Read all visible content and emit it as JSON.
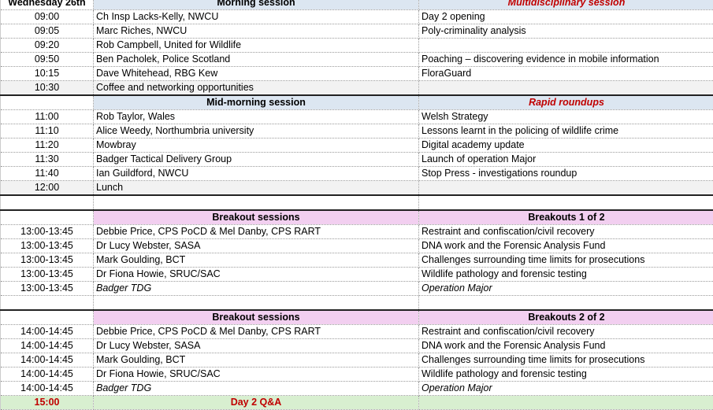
{
  "colors": {
    "header_blue": "#dce6f1",
    "header_pink": "#f2cff0",
    "qa_green": "#d8efd0",
    "accent_red": "#c00000"
  },
  "rows": [
    {
      "type": "head",
      "style": "blue",
      "c0": "Wednesday 26th",
      "c1": "Morning session",
      "c2": "Multidisciplinary session",
      "c2red": true
    },
    {
      "c0": "09:00",
      "c1": "Ch Insp Lacks-Kelly, NWCU",
      "c2": "Day 2 opening"
    },
    {
      "c0": "09:05",
      "c1": "Marc Riches, NWCU",
      "c2": "Poly-criminality analysis"
    },
    {
      "c0": "09:20",
      "c1": "Rob Campbell, United for Wildlife",
      "c2": ""
    },
    {
      "c0": "09:50",
      "c1": "Ben Pacholek, Police Scotland",
      "c2": "Poaching – discovering evidence in mobile information"
    },
    {
      "c0": "10:15",
      "c1": "Dave Whitehead, RBG Kew",
      "c2": "FloraGuard"
    },
    {
      "type": "gray",
      "c0": "10:30",
      "c1": "Coffee and networking opportunities",
      "c2": ""
    },
    {
      "type": "head",
      "style": "blue",
      "thick": true,
      "c0": "",
      "c1": "Mid-morning session",
      "c2": "Rapid roundups",
      "c2red": true
    },
    {
      "c0": "11:00",
      "c1": "Rob Taylor, Wales",
      "c2": "Welsh Strategy"
    },
    {
      "c0": "11:10",
      "c1": "Alice Weedy, Northumbria university",
      "c2": "Lessons learnt in the policing of wildlife crime"
    },
    {
      "c0": "11:20",
      "c1": "Mowbray",
      "c2": "Digital academy update"
    },
    {
      "c0": "11:30",
      "c1": "Badger Tactical Delivery Group",
      "c2": "Launch of operation Major"
    },
    {
      "c0": "11:40",
      "c1": "Ian Guildford, NWCU",
      "c2": "Stop Press - investigations roundup"
    },
    {
      "type": "gray",
      "c0": "12:00",
      "c1": "Lunch",
      "c2": ""
    },
    {
      "type": "blank",
      "thick": true,
      "c0": "",
      "c1": "",
      "c2": ""
    },
    {
      "type": "head",
      "style": "pink",
      "thick": true,
      "c0": "",
      "c1": "Breakout sessions",
      "c2": "Breakouts 1 of 2"
    },
    {
      "c0": "13:00-13:45",
      "c1": "Debbie Price, CPS PoCD & Mel Danby, CPS RART",
      "c2": "Restraint and confiscation/civil recovery"
    },
    {
      "c0": "13:00-13:45",
      "c1": "Dr Lucy Webster, SASA",
      "c2": "DNA work and the Forensic Analysis Fund"
    },
    {
      "c0": "13:00-13:45",
      "c1": "Mark Goulding, BCT",
      "c2": "Challenges surrounding time limits for prosecutions"
    },
    {
      "c0": "13:00-13:45",
      "c1": "Dr Fiona Howie, SRUC/SAC",
      "c2": "Wildlife pathology and forensic testing"
    },
    {
      "c0": "13:00-13:45",
      "c1": "Badger TDG",
      "c2": "Operation Major",
      "italic": true
    },
    {
      "type": "blank",
      "c0": "",
      "c1": "",
      "c2": ""
    },
    {
      "type": "head",
      "style": "pink",
      "thick": true,
      "c0": "",
      "c1": "Breakout sessions",
      "c2": "Breakouts 2 of 2"
    },
    {
      "c0": "14:00-14:45",
      "c1": "Debbie Price, CPS PoCD & Mel Danby, CPS RART",
      "c2": "Restraint and confiscation/civil recovery"
    },
    {
      "c0": "14:00-14:45",
      "c1": "Dr Lucy Webster, SASA",
      "c2": "DNA work and the Forensic Analysis Fund"
    },
    {
      "c0": "14:00-14:45",
      "c1": "Mark Goulding, BCT",
      "c2": "Challenges surrounding time limits for prosecutions"
    },
    {
      "c0": "14:00-14:45",
      "c1": "Dr Fiona Howie, SRUC/SAC",
      "c2": "Wildlife pathology and forensic testing"
    },
    {
      "c0": "14:00-14:45",
      "c1": "Badger TDG",
      "c2": "Operation Major",
      "italic": true
    },
    {
      "type": "green",
      "c0": "15:00",
      "c1": "Day 2 Q&A",
      "c2": ""
    }
  ]
}
